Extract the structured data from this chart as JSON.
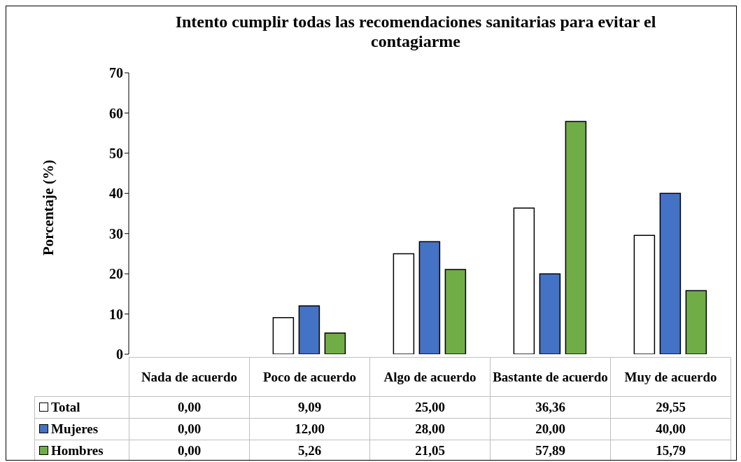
{
  "chart_data": {
    "type": "bar",
    "title": "Intento cumplir todas las recomendaciones sanitarias para evitar el contagiarme",
    "ylabel": "Porcentaje (%)",
    "categories": [
      "Nada de acuerdo",
      "Poco de acuerdo",
      "Algo de acuerdo",
      "Bastante de acuerdo",
      "Muy de acuerdo"
    ],
    "series": [
      {
        "name": "Total",
        "color": "#ffffff",
        "values": [
          0.0,
          9.09,
          25.0,
          36.36,
          29.55
        ],
        "value_labels": [
          "0,00",
          "9,09",
          "25,00",
          "36,36",
          "29,55"
        ]
      },
      {
        "name": "Mujeres",
        "color": "#4472c4",
        "values": [
          0.0,
          12.0,
          28.0,
          20.0,
          40.0
        ],
        "value_labels": [
          "0,00",
          "12,00",
          "28,00",
          "20,00",
          "40,00"
        ]
      },
      {
        "name": "Hombres",
        "color": "#70ad47",
        "values": [
          0.0,
          5.26,
          21.05,
          57.89,
          15.79
        ],
        "value_labels": [
          "0,00",
          "5,26",
          "21,05",
          "57,89",
          "15,79"
        ]
      }
    ],
    "ylim": [
      0,
      70
    ],
    "yticks": [
      0,
      10,
      20,
      30,
      40,
      50,
      60,
      70
    ],
    "legend": "bottom left"
  }
}
